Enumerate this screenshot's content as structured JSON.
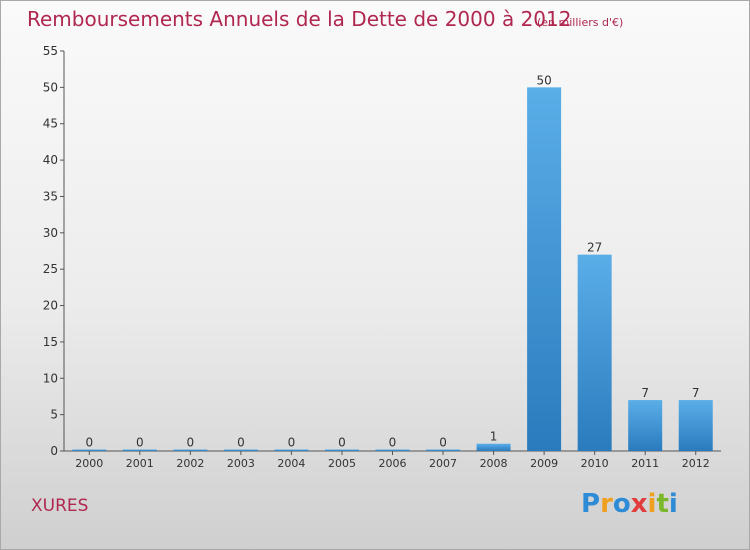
{
  "title": "Remboursements Annuels de la Dette de 2000 à 2012",
  "subtitle": "(en milliers d'€)",
  "commune": "XURES",
  "logo": {
    "text": "Proxiti",
    "letters": [
      {
        "ch": "P",
        "color": "#2e8bd6"
      },
      {
        "ch": "r",
        "color": "#f0a020"
      },
      {
        "ch": "o",
        "color": "#2e8bd6"
      },
      {
        "ch": "x",
        "color": "#e23d3d"
      },
      {
        "ch": "i",
        "color": "#f0a020"
      },
      {
        "ch": "t",
        "color": "#7ab82a"
      },
      {
        "ch": "i",
        "color": "#2e8bd6"
      }
    ]
  },
  "colors": {
    "bar_light": "#5aaee8",
    "bar_dark": "#2a7bbd",
    "accent": "#b0274f"
  },
  "chart_data": {
    "type": "bar",
    "categories": [
      "2000",
      "2001",
      "2002",
      "2003",
      "2004",
      "2005",
      "2006",
      "2007",
      "2008",
      "2009",
      "2010",
      "2011",
      "2012"
    ],
    "values": [
      0,
      0,
      0,
      0,
      0,
      0,
      0,
      0,
      1,
      50,
      27,
      7,
      7
    ],
    "data_labels": [
      "0",
      "0",
      "0",
      "0",
      "0",
      "0",
      "0",
      "0",
      "1",
      "50",
      "27",
      "7",
      "7"
    ],
    "ylim": [
      0,
      55
    ],
    "yticks": [
      0,
      5,
      10,
      15,
      20,
      25,
      30,
      35,
      40,
      45,
      50,
      55
    ],
    "grid": false,
    "xlabel": "",
    "ylabel": ""
  }
}
